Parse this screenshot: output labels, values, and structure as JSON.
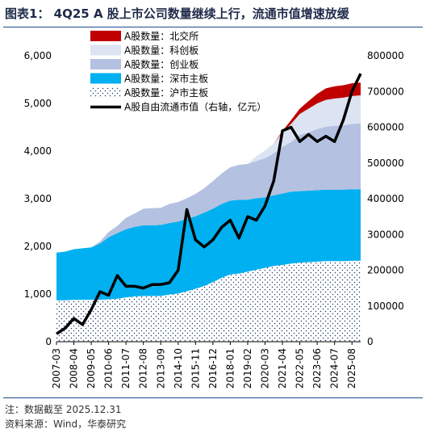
{
  "title": "图表1： 4Q25 A 股上市公司数量继续上行，流通市值增速放缓",
  "note": "注：数据截至 2025.12.31",
  "source": "资料来源：Wind，华泰研究",
  "colors": {
    "bse": "#c00000",
    "star": "#dce3f2",
    "chinext": "#b4c1e0",
    "szse_main": "#00b0f0",
    "sse_main_dot": "#1a3a6e",
    "cap_line": "#000000"
  },
  "chart_data": {
    "type": "area",
    "x": [
      "2007-03",
      "2007-09",
      "2008-04",
      "2008-10",
      "2009-05",
      "2009-11",
      "2010-06",
      "2010-12",
      "2011-07",
      "2012-01",
      "2012-08",
      "2013-02",
      "2013-09",
      "2014-03",
      "2014-10",
      "2015-04",
      "2015-11",
      "2016-05",
      "2016-12",
      "2017-06",
      "2018-01",
      "2018-07",
      "2019-02",
      "2019-08",
      "2020-03",
      "2020-09",
      "2021-04",
      "2021-10",
      "2022-05",
      "2022-11",
      "2023-06",
      "2023-12",
      "2024-07",
      "2025-01",
      "2025-08",
      "2025-12"
    ],
    "tick_labels": [
      "2007-03",
      "2008-04",
      "2009-05",
      "2010-06",
      "2011-07",
      "2012-08",
      "2013-09",
      "2014-10",
      "2015-11",
      "2016-12",
      "2018-01",
      "2019-02",
      "2020-03",
      "2021-04",
      "2022-05",
      "2023-06",
      "2024-07",
      "2025-08"
    ],
    "y_left": {
      "min": 0,
      "max": 6000,
      "ticks": [
        "0",
        "1,000",
        "2,000",
        "3,000",
        "4,000",
        "5,000",
        "6,000"
      ]
    },
    "y_right": {
      "min": 0,
      "max": 800000,
      "ticks": [
        "0",
        "100000",
        "200000",
        "300000",
        "400000",
        "500000",
        "600000",
        "700000",
        "800000"
      ]
    },
    "legend_position": "top-center",
    "series": [
      {
        "name": "A股数量：北交所",
        "kind": "stacked-area",
        "values": [
          0,
          0,
          0,
          0,
          0,
          0,
          0,
          0,
          0,
          0,
          0,
          0,
          0,
          0,
          0,
          0,
          0,
          0,
          0,
          0,
          0,
          0,
          0,
          0,
          0,
          0,
          30,
          80,
          110,
          160,
          200,
          240,
          255,
          262,
          267,
          268
        ]
      },
      {
        "name": "A股数量：科创板",
        "kind": "stacked-area",
        "values": [
          0,
          0,
          0,
          0,
          0,
          0,
          0,
          0,
          0,
          0,
          0,
          0,
          0,
          0,
          0,
          0,
          0,
          0,
          0,
          0,
          0,
          0,
          0,
          100,
          160,
          210,
          300,
          380,
          440,
          500,
          540,
          565,
          572,
          580,
          585,
          590
        ]
      },
      {
        "name": "A股数量：创业板",
        "kind": "stacked-area",
        "values": [
          0,
          0,
          0,
          0,
          0,
          40,
          110,
          150,
          240,
          280,
          350,
          360,
          360,
          400,
          410,
          430,
          470,
          510,
          580,
          640,
          700,
          730,
          750,
          780,
          820,
          880,
          980,
          1040,
          1180,
          1220,
          1280,
          1320,
          1340,
          1350,
          1370,
          1380
        ]
      },
      {
        "name": "A股数量：深市主板",
        "kind": "stacked-area",
        "values": [
          1000,
          1020,
          1060,
          1080,
          1100,
          1180,
          1300,
          1380,
          1430,
          1460,
          1480,
          1480,
          1490,
          1500,
          1510,
          1520,
          1520,
          1540,
          1540,
          1550,
          1550,
          1550,
          1510,
          1500,
          1480,
          1480,
          1500,
          1510,
          1500,
          1500,
          1500,
          1500,
          1500,
          1500,
          1500,
          1500
        ]
      },
      {
        "name": "A股数量：沪市主板",
        "kind": "stacked-area",
        "values": [
          870,
          870,
          880,
          880,
          880,
          880,
          890,
          900,
          930,
          950,
          960,
          960,
          960,
          990,
          1010,
          1060,
          1110,
          1170,
          1250,
          1340,
          1410,
          1430,
          1470,
          1510,
          1550,
          1590,
          1610,
          1640,
          1660,
          1670,
          1680,
          1690,
          1690,
          1690,
          1700,
          1700
        ]
      },
      {
        "name": "A股自由流通市值（右轴，亿元）",
        "kind": "line",
        "axis": "right",
        "values": [
          22000,
          38000,
          65000,
          48000,
          90000,
          140000,
          130000,
          185000,
          155000,
          155000,
          150000,
          160000,
          160000,
          165000,
          200000,
          370000,
          285000,
          265000,
          285000,
          320000,
          340000,
          290000,
          350000,
          340000,
          380000,
          450000,
          590000,
          600000,
          560000,
          580000,
          560000,
          575000,
          560000,
          620000,
          700000,
          750000
        ]
      }
    ]
  }
}
